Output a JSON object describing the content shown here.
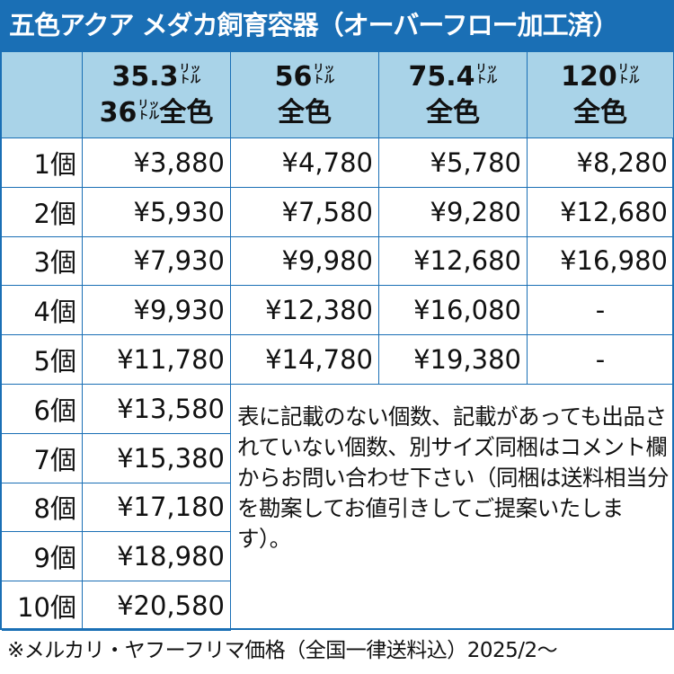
{
  "title": "五色アクア メダカ飼育容器（オーバーフロー加工済）",
  "unit_top": "リッ",
  "unit_bottom": "トル",
  "columns": [
    {
      "line1": "35.3",
      "line2a": "36",
      "line2b": "全色"
    },
    {
      "line1": "56",
      "line2": "全色"
    },
    {
      "line1": "75.4",
      "line2": "全色"
    },
    {
      "line1": "120",
      "line2": "全色"
    }
  ],
  "rows": [
    {
      "label": "1個",
      "prices": [
        "¥3,880",
        "¥4,780",
        "¥5,780",
        "¥8,280"
      ]
    },
    {
      "label": "2個",
      "prices": [
        "¥5,930",
        "¥7,580",
        "¥9,280",
        "¥12,680"
      ]
    },
    {
      "label": "3個",
      "prices": [
        "¥7,930",
        "¥9,980",
        "¥12,680",
        "¥16,980"
      ]
    },
    {
      "label": "4個",
      "prices": [
        "¥9,930",
        "¥12,380",
        "¥16,080",
        "-"
      ]
    },
    {
      "label": "5個",
      "prices": [
        "¥11,780",
        "¥14,780",
        "¥19,380",
        "-"
      ]
    },
    {
      "label": "6個",
      "prices": [
        "¥13,580"
      ]
    },
    {
      "label": "7個",
      "prices": [
        "¥15,380"
      ]
    },
    {
      "label": "8個",
      "prices": [
        "¥17,180"
      ]
    },
    {
      "label": "9個",
      "prices": [
        "¥18,980"
      ]
    },
    {
      "label": "10個",
      "prices": [
        "¥20,580"
      ]
    }
  ],
  "note": "表に記載のない個数、記載があっても出品されていない個数、別サイズ同梱はコメント欄からお問い合わせ下さい（同梱は送料相当分を勘案してお値引きしてご提案いたします）。",
  "footer": "※メルカリ・ヤフーフリマ価格（全国一律送料込）2025/2～",
  "colors": {
    "title_bg": "#1a6fb5",
    "header_bg": "#a9d3e8",
    "border": "#1a6fb5"
  }
}
